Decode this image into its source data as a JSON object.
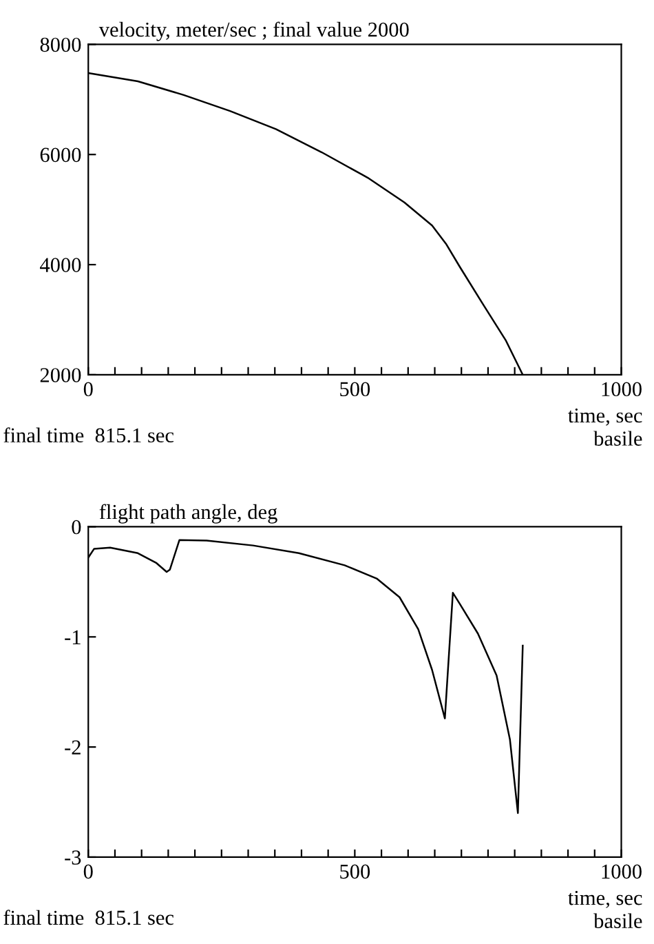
{
  "chart_data": [
    {
      "type": "line",
      "title": "velocity, meter/sec ; final value 2000",
      "xlabel": "time, sec",
      "series": [
        {
          "color": "#000000",
          "x": [
            0,
            93,
            179,
            266,
            352,
            438,
            524,
            593,
            645,
            671,
            697,
            740,
            783,
            815.1
          ],
          "values": [
            7480,
            7330,
            7080,
            6790,
            6460,
            6040,
            5580,
            5130,
            4710,
            4380,
            3960,
            3290,
            2630,
            2000
          ]
        }
      ],
      "xlim": [
        0,
        1000
      ],
      "ylim": [
        2000,
        8000
      ],
      "xticks": [
        0,
        {
          "value": 50,
          "label": null
        },
        {
          "value": 100,
          "label": null
        },
        {
          "value": 150,
          "label": null
        },
        {
          "value": 200,
          "label": null
        },
        {
          "value": 250,
          "label": null
        },
        {
          "value": 300,
          "label": null
        },
        {
          "value": 350,
          "label": null
        },
        {
          "value": 400,
          "label": null
        },
        {
          "value": 450,
          "label": null
        },
        500,
        {
          "value": 550,
          "label": null
        },
        {
          "value": 600,
          "label": null
        },
        {
          "value": 650,
          "label": null
        },
        {
          "value": 700,
          "label": null
        },
        {
          "value": 750,
          "label": null
        },
        {
          "value": 800,
          "label": null
        },
        {
          "value": 850,
          "label": null
        },
        {
          "value": 900,
          "label": null
        },
        {
          "value": 950,
          "label": null
        },
        1000
      ],
      "yticks": [
        2000,
        4000,
        6000,
        8000
      ],
      "grid": false,
      "legend": false,
      "annotations": [
        "final time  815.1 sec",
        "basile"
      ]
    },
    {
      "type": "line",
      "title": "flight path angle, deg",
      "xlabel": "time, sec",
      "series": [
        {
          "color": "#000000",
          "x": [
            0,
            11,
            41,
            93,
            128,
            147,
            153,
            171,
            222,
            309,
            395,
            481,
            541,
            584,
            619,
            645,
            669,
            684,
            697,
            731,
            766,
            791,
            806,
            815.1
          ],
          "values": [
            -0.28,
            -0.2,
            -0.19,
            -0.24,
            -0.33,
            -0.41,
            -0.39,
            -0.12,
            -0.125,
            -0.17,
            -0.24,
            -0.35,
            -0.47,
            -0.64,
            -0.93,
            -1.3,
            -1.74,
            -0.6,
            -0.7,
            -0.97,
            -1.35,
            -1.93,
            -2.6,
            -1.08
          ]
        }
      ],
      "xlim": [
        0,
        1000
      ],
      "ylim": [
        -3,
        0
      ],
      "xticks": [
        0,
        {
          "value": 50,
          "label": null
        },
        {
          "value": 100,
          "label": null
        },
        {
          "value": 150,
          "label": null
        },
        {
          "value": 200,
          "label": null
        },
        {
          "value": 250,
          "label": null
        },
        {
          "value": 300,
          "label": null
        },
        {
          "value": 350,
          "label": null
        },
        {
          "value": 400,
          "label": null
        },
        {
          "value": 450,
          "label": null
        },
        500,
        {
          "value": 550,
          "label": null
        },
        {
          "value": 600,
          "label": null
        },
        {
          "value": 650,
          "label": null
        },
        {
          "value": 700,
          "label": null
        },
        {
          "value": 750,
          "label": null
        },
        {
          "value": 800,
          "label": null
        },
        {
          "value": 850,
          "label": null
        },
        {
          "value": 900,
          "label": null
        },
        {
          "value": 950,
          "label": null
        },
        1000
      ],
      "yticks": [
        -3,
        -2,
        -1,
        0
      ],
      "grid": false,
      "legend": false,
      "annotations": [
        "final time  815.1 sec",
        "basile"
      ]
    }
  ]
}
